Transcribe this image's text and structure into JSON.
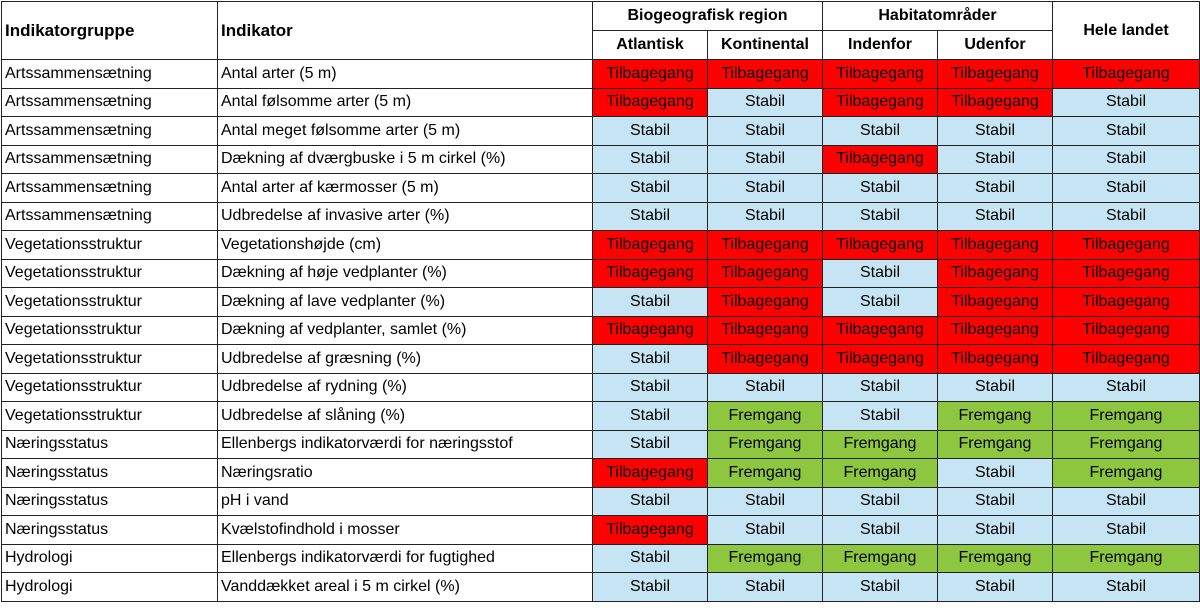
{
  "headers": {
    "group": "Indikatorgruppe",
    "indicator": "Indikator",
    "biogeo": "Biogeografisk region",
    "habitat": "Habitatområder",
    "whole": "Hele landet",
    "atlantisk": "Atlantisk",
    "kontinental": "Kontinental",
    "indenfor": "Indenfor",
    "udenfor": "Udenfor"
  },
  "status_colors": {
    "Tilbagegang": "#ff0000",
    "Stabil": "#c5e5f4",
    "Fremgang": "#8dc63f"
  },
  "chart_data": {
    "type": "table",
    "columns": [
      "Indikatorgruppe",
      "Indikator",
      "Atlantisk",
      "Kontinental",
      "Indenfor",
      "Udenfor",
      "Hele landet"
    ],
    "rows": [
      [
        "Artssammensætning",
        "Antal arter (5 m)",
        "Tilbagegang",
        "Tilbagegang",
        "Tilbagegang",
        "Tilbagegang",
        "Tilbagegang"
      ],
      [
        "Artssammensætning",
        "Antal følsomme arter (5 m)",
        "Tilbagegang",
        "Stabil",
        "Tilbagegang",
        "Tilbagegang",
        "Stabil"
      ],
      [
        "Artssammensætning",
        "Antal meget følsomme arter (5 m)",
        "Stabil",
        "Stabil",
        "Stabil",
        "Stabil",
        "Stabil"
      ],
      [
        "Artssammensætning",
        "Dækning af dværgbuske i 5 m cirkel (%)",
        "Stabil",
        "Stabil",
        "Tilbagegang",
        "Stabil",
        "Stabil"
      ],
      [
        "Artssammensætning",
        "Antal arter af kærmosser (5 m)",
        "Stabil",
        "Stabil",
        "Stabil",
        "Stabil",
        "Stabil"
      ],
      [
        "Artssammensætning",
        "Udbredelse af invasive arter (%)",
        "Stabil",
        "Stabil",
        "Stabil",
        "Stabil",
        "Stabil"
      ],
      [
        "Vegetationsstruktur",
        "Vegetationshøjde (cm)",
        "Tilbagegang",
        "Tilbagegang",
        "Tilbagegang",
        "Tilbagegang",
        "Tilbagegang"
      ],
      [
        "Vegetationsstruktur",
        "Dækning af høje vedplanter (%)",
        "Tilbagegang",
        "Tilbagegang",
        "Stabil",
        "Tilbagegang",
        "Tilbagegang"
      ],
      [
        "Vegetationsstruktur",
        "Dækning af lave vedplanter (%)",
        "Stabil",
        "Tilbagegang",
        "Stabil",
        "Tilbagegang",
        "Tilbagegang"
      ],
      [
        "Vegetationsstruktur",
        "Dækning af vedplanter, samlet (%)",
        "Tilbagegang",
        "Tilbagegang",
        "Tilbagegang",
        "Tilbagegang",
        "Tilbagegang"
      ],
      [
        "Vegetationsstruktur",
        "Udbredelse af græsning (%)",
        "Stabil",
        "Tilbagegang",
        "Tilbagegang",
        "Tilbagegang",
        "Tilbagegang"
      ],
      [
        "Vegetationsstruktur",
        "Udbredelse af rydning (%)",
        "Stabil",
        "Stabil",
        "Stabil",
        "Stabil",
        "Stabil"
      ],
      [
        "Vegetationsstruktur",
        "Udbredelse af slåning (%)",
        "Stabil",
        "Fremgang",
        "Stabil",
        "Fremgang",
        "Fremgang"
      ],
      [
        "Næringsstatus",
        "Ellenbergs indikatorværdi for næringsstof",
        "Stabil",
        "Fremgang",
        "Fremgang",
        "Fremgang",
        "Fremgang"
      ],
      [
        "Næringsstatus",
        "Næringsratio",
        "Tilbagegang",
        "Fremgang",
        "Fremgang",
        "Stabil",
        "Fremgang"
      ],
      [
        "Næringsstatus",
        "pH i vand",
        "Stabil",
        "Stabil",
        "Stabil",
        "Stabil",
        "Stabil"
      ],
      [
        "Næringsstatus",
        "Kvælstofindhold i mosser",
        "Tilbagegang",
        "Stabil",
        "Stabil",
        "Stabil",
        "Stabil"
      ],
      [
        "Hydrologi",
        "Ellenbergs indikatorværdi for fugtighed",
        "Stabil",
        "Fremgang",
        "Fremgang",
        "Fremgang",
        "Fremgang"
      ],
      [
        "Hydrologi",
        "Vanddækket areal i 5 m cirkel (%)",
        "Stabil",
        "Stabil",
        "Stabil",
        "Stabil",
        "Stabil"
      ]
    ]
  }
}
